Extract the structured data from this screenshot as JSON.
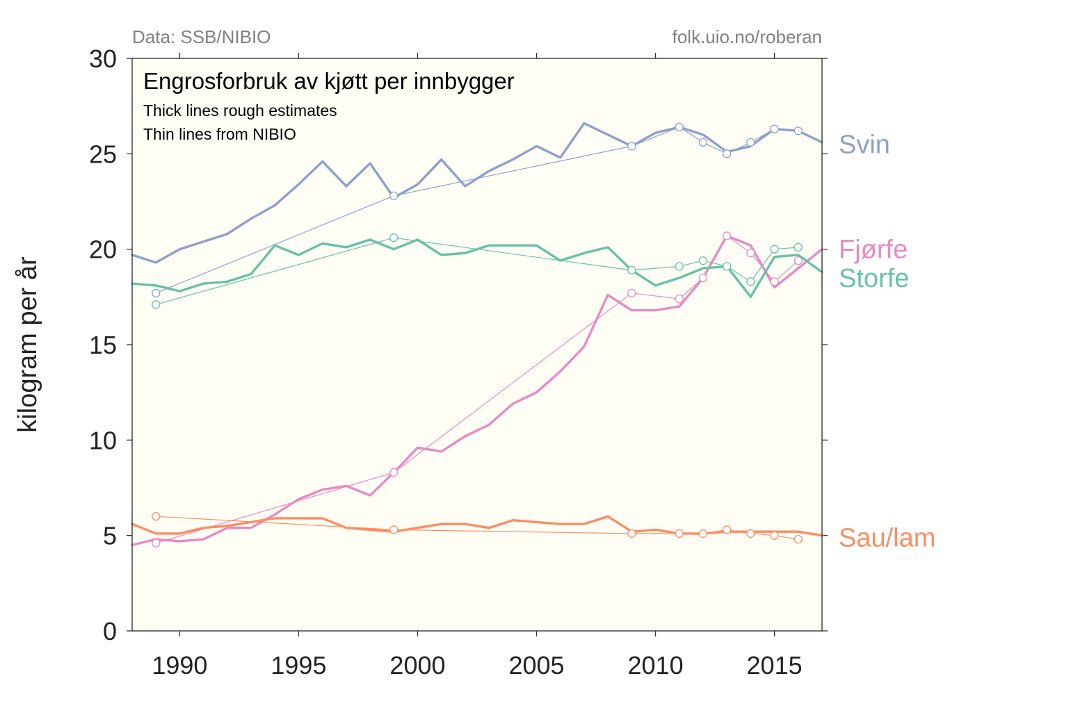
{
  "header": {
    "source_left": "Data: SSB/NIBIO",
    "source_right": "folk.uio.no/roberan"
  },
  "chart_data": {
    "type": "line",
    "title": "Engrosforbruk av kjøtt per innbygger",
    "subtitle_lines": [
      "Thick lines rough estimates",
      "Thin lines from NIBIO"
    ],
    "xlabel": "",
    "ylabel": "kilogram per år",
    "xlim": [
      1988,
      2017
    ],
    "ylim": [
      0,
      30
    ],
    "xticks": [
      1990,
      1995,
      2000,
      2005,
      2010,
      2015
    ],
    "yticks": [
      0,
      5,
      10,
      15,
      20,
      25,
      30
    ],
    "grid": false,
    "plot_background": "#fffef5",
    "axis_color": "#333333",
    "series": [
      {
        "name": "Svin",
        "color": "#8da0cb",
        "label_y": 25.5,
        "thick": {
          "x": [
            1988,
            1989,
            1990,
            1991,
            1992,
            1993,
            1994,
            1995,
            1996,
            1997,
            1998,
            1999,
            2000,
            2001,
            2002,
            2003,
            2004,
            2005,
            2006,
            2007,
            2008,
            2009,
            2010,
            2011,
            2012,
            2013,
            2014,
            2015,
            2016,
            2017
          ],
          "y": [
            19.7,
            19.3,
            20.0,
            20.4,
            20.8,
            21.6,
            22.3,
            23.4,
            24.6,
            23.3,
            24.5,
            22.7,
            23.4,
            24.7,
            23.3,
            24.1,
            24.7,
            25.4,
            24.8,
            26.6,
            26.0,
            25.4,
            26.1,
            26.4,
            26.0,
            25.1,
            25.4,
            26.3,
            26.2,
            25.6
          ]
        },
        "thin": {
          "x": [
            1989,
            1999,
            2009,
            2011,
            2012,
            2013,
            2014,
            2015,
            2016
          ],
          "y": [
            17.7,
            22.8,
            25.4,
            26.4,
            25.6,
            25.0,
            25.6,
            26.3,
            26.2
          ]
        }
      },
      {
        "name": "Fjørfe",
        "color": "#e78ac3",
        "label_y": 20.0,
        "thick": {
          "x": [
            1988,
            1989,
            1990,
            1991,
            1992,
            1993,
            1994,
            1995,
            1996,
            1997,
            1998,
            1999,
            2000,
            2001,
            2002,
            2003,
            2004,
            2005,
            2006,
            2007,
            2008,
            2009,
            2010,
            2011,
            2012,
            2013,
            2014,
            2015,
            2016,
            2017
          ],
          "y": [
            4.5,
            4.8,
            4.7,
            4.8,
            5.4,
            5.4,
            6.1,
            6.9,
            7.4,
            7.6,
            7.1,
            8.3,
            9.6,
            9.4,
            10.2,
            10.8,
            11.9,
            12.5,
            13.6,
            14.9,
            17.6,
            16.8,
            16.8,
            17.0,
            18.5,
            20.7,
            20.2,
            18.0,
            19.0,
            20.0
          ]
        },
        "thin": {
          "x": [
            1989,
            1999,
            2009,
            2011,
            2012,
            2013,
            2014,
            2015,
            2016
          ],
          "y": [
            4.6,
            8.3,
            17.7,
            17.4,
            18.5,
            20.7,
            19.8,
            18.3,
            19.4
          ]
        }
      },
      {
        "name": "Storfe",
        "color": "#66c2a5",
        "label_y": 18.5,
        "thick": {
          "x": [
            1988,
            1989,
            1990,
            1991,
            1992,
            1993,
            1994,
            1995,
            1996,
            1997,
            1998,
            1999,
            2000,
            2001,
            2002,
            2003,
            2004,
            2005,
            2006,
            2007,
            2008,
            2009,
            2010,
            2011,
            2012,
            2013,
            2014,
            2015,
            2016,
            2017
          ],
          "y": [
            18.2,
            18.1,
            17.8,
            18.2,
            18.3,
            18.7,
            20.2,
            19.7,
            20.3,
            20.1,
            20.5,
            20.0,
            20.5,
            19.7,
            19.8,
            20.2,
            20.2,
            20.2,
            19.4,
            19.8,
            20.1,
            18.9,
            18.1,
            18.5,
            19.0,
            19.1,
            17.5,
            19.6,
            19.7,
            18.8
          ]
        },
        "thin": {
          "x": [
            1989,
            1999,
            2009,
            2011,
            2012,
            2013,
            2014,
            2015,
            2016
          ],
          "y": [
            17.1,
            20.6,
            18.9,
            19.1,
            19.4,
            19.1,
            18.3,
            20.0,
            20.1
          ]
        }
      },
      {
        "name": "Sau/lam",
        "color": "#fc8d62",
        "label_y": 4.9,
        "thick": {
          "x": [
            1988,
            1989,
            1990,
            1991,
            1992,
            1993,
            1994,
            1995,
            1996,
            1997,
            1998,
            1999,
            2000,
            2001,
            2002,
            2003,
            2004,
            2005,
            2006,
            2007,
            2008,
            2009,
            2010,
            2011,
            2012,
            2013,
            2014,
            2015,
            2016,
            2017
          ],
          "y": [
            5.6,
            5.1,
            5.1,
            5.4,
            5.5,
            5.7,
            5.9,
            5.9,
            5.9,
            5.4,
            5.3,
            5.2,
            5.4,
            5.6,
            5.6,
            5.4,
            5.8,
            5.7,
            5.6,
            5.6,
            6.0,
            5.2,
            5.3,
            5.1,
            5.1,
            5.2,
            5.2,
            5.2,
            5.2,
            5.0
          ]
        },
        "thin": {
          "x": [
            1989,
            1999,
            2009,
            2011,
            2012,
            2013,
            2014,
            2015,
            2016
          ],
          "y": [
            6.0,
            5.3,
            5.1,
            5.1,
            5.1,
            5.3,
            5.1,
            5.0,
            4.8
          ]
        }
      }
    ]
  }
}
